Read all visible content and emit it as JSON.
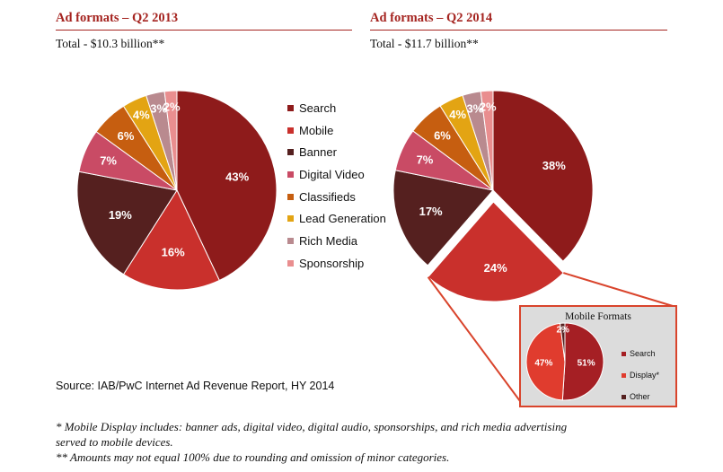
{
  "left_panel": {
    "title": "Ad formats – Q2 2013",
    "total": "Total - $10.3 billion**"
  },
  "right_panel": {
    "title": "Ad formats – Q2 2014",
    "total": "Total - $11.7 billion**"
  },
  "legend": [
    {
      "label": "Search",
      "color": "#8e1b1b"
    },
    {
      "label": "Mobile",
      "color": "#c9302c"
    },
    {
      "label": "Banner",
      "color": "#55201f"
    },
    {
      "label": "Digital Video",
      "color": "#c94b65"
    },
    {
      "label": "Classifieds",
      "color": "#c65e10"
    },
    {
      "label": "Lead Generation",
      "color": "#e3a413"
    },
    {
      "label": "Rich Media",
      "color": "#b98a8f"
    },
    {
      "label": "Sponsorship",
      "color": "#e98e8f"
    }
  ],
  "inset": {
    "title": "Mobile Formats",
    "legend": [
      {
        "label": "Search",
        "color": "#a51f24"
      },
      {
        "label": "Display*",
        "color": "#e03c2e"
      },
      {
        "label": "Other",
        "color": "#55201f"
      }
    ]
  },
  "source": "Source: IAB/PwC Internet Ad Revenue Report, HY 2014",
  "footnotes": [
    "* Mobile Display includes: banner ads, digital video, digital audio, sponsorships, and rich media advertising",
    "served to mobile devices.",
    "** Amounts may not equal 100% due to rounding and omission of minor categories."
  ],
  "chart_data": [
    {
      "type": "pie",
      "title": "Ad formats – Q2 2013",
      "subtitle": "Total - $10.3 billion**",
      "categories": [
        "Search",
        "Mobile",
        "Banner",
        "Digital Video",
        "Classifieds",
        "Lead Generation",
        "Rich Media",
        "Sponsorship"
      ],
      "values": [
        43,
        16,
        19,
        7,
        6,
        4,
        3,
        2
      ],
      "labels": [
        "43%",
        "16%",
        "19%",
        "7%",
        "6%",
        "4%",
        "3%",
        "2%"
      ],
      "legend": "right"
    },
    {
      "type": "pie",
      "title": "Ad formats – Q2 2014",
      "subtitle": "Total - $11.7 billion**",
      "categories": [
        "Search",
        "Mobile",
        "Banner",
        "Digital Video",
        "Classifieds",
        "Lead Generation",
        "Rich Media",
        "Sponsorship"
      ],
      "values": [
        38,
        24,
        17,
        7,
        6,
        4,
        3,
        2
      ],
      "labels": [
        "38%",
        "24%",
        "17%",
        "7%",
        "6%",
        "4%",
        "3%",
        "2%"
      ],
      "exploded": "Mobile"
    },
    {
      "type": "pie",
      "title": "Mobile Formats",
      "categories": [
        "Search",
        "Display*",
        "Other"
      ],
      "values": [
        51,
        47,
        2
      ],
      "labels": [
        "51%",
        "47%",
        "2%"
      ],
      "legend": "right"
    }
  ]
}
